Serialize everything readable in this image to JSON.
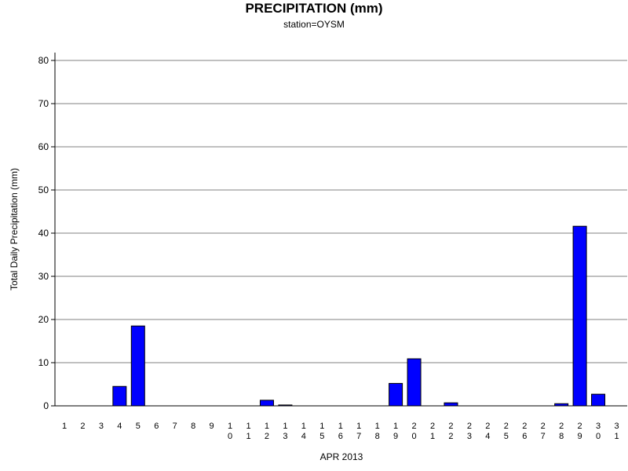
{
  "chart_data": {
    "type": "bar",
    "title": "PRECIPITATION (mm)",
    "subtitle": "station=OYSM",
    "xlabel": "APR 2013",
    "ylabel": "Total Daily Precipitation (mm)",
    "ylim": [
      0,
      80
    ],
    "yticks": [
      0,
      10,
      20,
      30,
      40,
      50,
      60,
      70,
      80
    ],
    "grid": true,
    "categories": [
      "1",
      "2",
      "3",
      "4",
      "5",
      "6",
      "7",
      "8",
      "9",
      "10",
      "11",
      "12",
      "13",
      "14",
      "15",
      "16",
      "17",
      "18",
      "19",
      "20",
      "21",
      "22",
      "23",
      "24",
      "25",
      "26",
      "27",
      "28",
      "29",
      "30",
      "31"
    ],
    "values": [
      0,
      0,
      0,
      4.5,
      18.5,
      0,
      0,
      0,
      0,
      0,
      0,
      1.3,
      0.2,
      0,
      0,
      0,
      0,
      0,
      5.2,
      10.9,
      0,
      0.7,
      0,
      0,
      0,
      0,
      0,
      0.5,
      41.6,
      2.7,
      0
    ],
    "bar_color": "#0000ff",
    "grid_color": "#808080"
  }
}
